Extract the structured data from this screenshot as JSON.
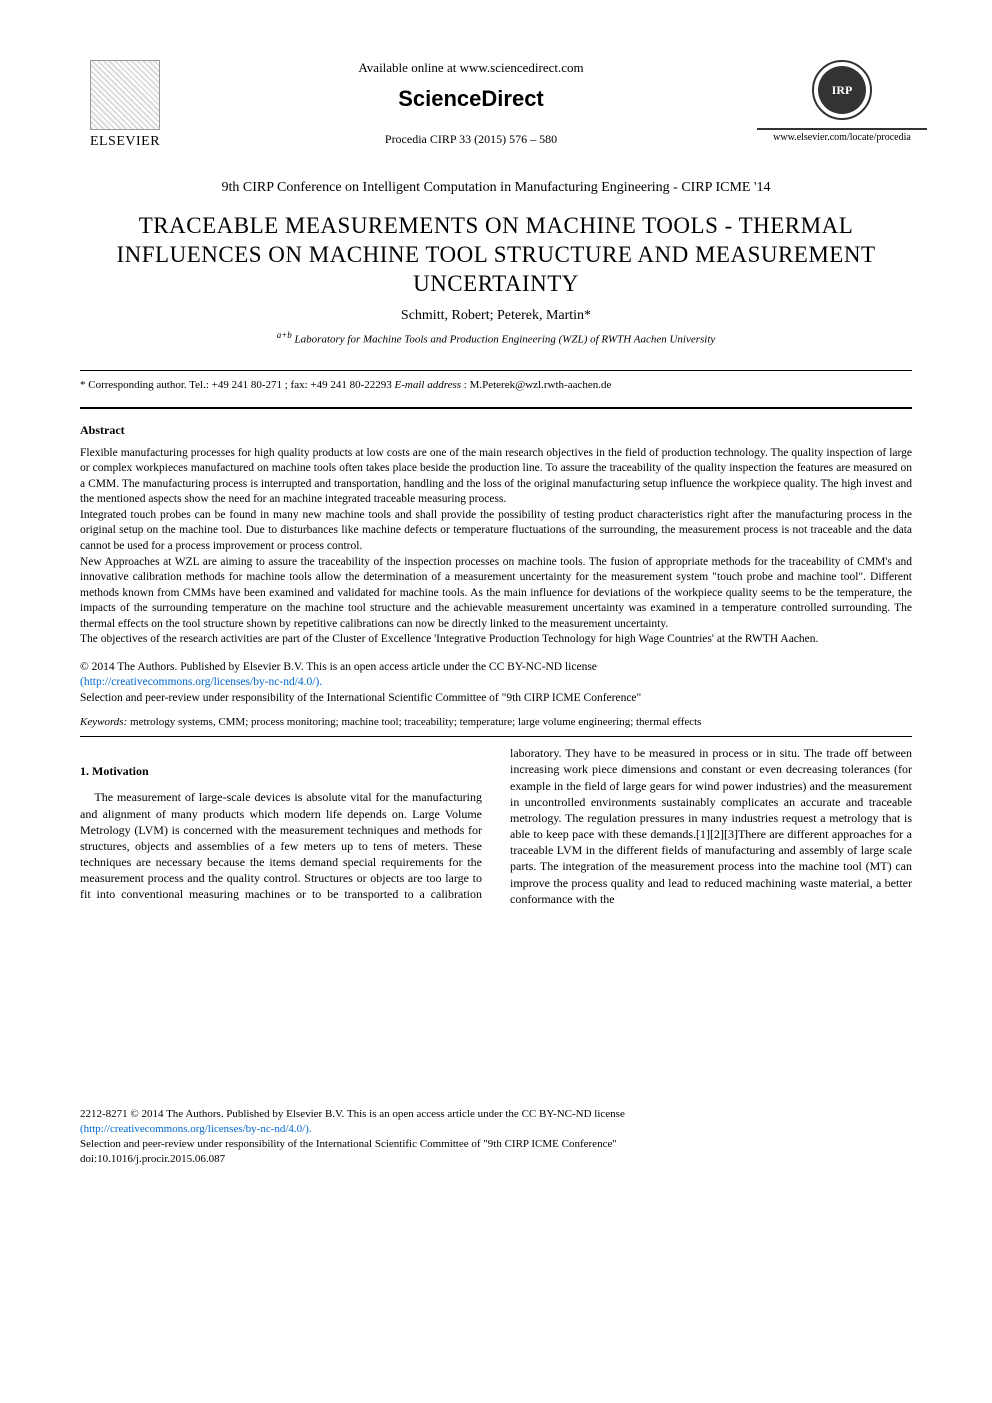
{
  "header": {
    "elsevier_label": "ELSEVIER",
    "available_online": "Available online at www.sciencedirect.com",
    "sciencedirect": "ScienceDirect",
    "procedia_citation": "Procedia CIRP 33 (2015) 576 – 580",
    "cirp_logo_text": "IRP",
    "procedia_url": "www.elsevier.com/locate/procedia"
  },
  "conference": "9th CIRP Conference on Intelligent Computation in Manufacturing Engineering - CIRP ICME '14",
  "title": "TRACEABLE MEASUREMENTS ON MACHINE TOOLS - THERMAL INFLUENCES ON MACHINE TOOL STRUCTURE AND MEASUREMENT UNCERTAINTY",
  "authors": "Schmitt, Robert; Peterek, Martin*",
  "affiliation_sup": "a+b",
  "affiliation": "Laboratory for Machine Tools and Production Engineering (WZL) of RWTH Aachen University",
  "corresponding_prefix": "* Corresponding author. Tel.: +49 241 80-271 ; fax: +49 241 80-22293  ",
  "corresponding_email_label": "E-mail address",
  "corresponding_email": ": M.Peterek@wzl.rwth-aachen.de",
  "abstract_heading": "Abstract",
  "abstract": {
    "p1": "Flexible manufacturing processes for high quality products at low costs are one of the main research objectives in the field of production technology. The quality inspection of large or complex workpieces manufactured on machine tools often takes place beside the production line. To assure the traceability of the quality inspection the features are measured on a CMM. The manufacturing process is interrupted and transportation, handling and the loss of the original manufacturing setup influence the workpiece quality. The high invest and the mentioned aspects show the need for an machine integrated traceable measuring process.",
    "p2": "Integrated touch probes can be found in many new machine tools and shall provide the possibility of testing product characteristics right after the manufacturing process in the original setup on the machine tool. Due to disturbances like machine defects or temperature fluctuations of the surrounding, the measurement process is not traceable and the data cannot be used for a process improvement or process control.",
    "p3": "New Approaches at WZL are aiming to assure the traceability of the inspection processes on machine tools. The fusion of appropriate methods for the traceability of CMM's and innovative calibration methods for machine tools allow the determination of a measurement uncertainty for the measurement system \"touch probe and machine tool\". Different methods known from CMMs have been examined and validated for machine tools. As the main influence for deviations of the workpiece quality seems to be the temperature, the impacts of the surrounding temperature on the machine tool structure and the achievable measurement uncertainty was examined in a temperature controlled surrounding. The thermal effects on the tool structure shown by repetitive calibrations can now be directly linked to the measurement uncertainty.",
    "p4": "The objectives of the research activities are part of the Cluster of Excellence 'Integrative Production Technology for high Wage Countries' at the RWTH Aachen."
  },
  "license": {
    "line1": "© 2014 The Authors. Published by Elsevier B.V. This is an open access article under the CC BY-NC-ND license",
    "link": "(http://creativecommons.org/licenses/by-nc-nd/4.0/).",
    "line2": "Selection and peer-review under responsibility of the International Scientific Committee of \"9th CIRP ICME Conference\""
  },
  "keywords_label": "Keywords:",
  "keywords": " metrology systems, CMM; process monitoring;  machine tool; traceability; temperature; large volume engineering; thermal effects",
  "section1_heading": "1. Motivation",
  "motivation_text": "The measurement of large-scale devices is absolute vital for the manufacturing and alignment of many products which modern life depends on.  Large Volume Metrology (LVM) is concerned with the measurement techniques and methods for structures, objects and assemblies of a few meters up to tens of meters. These techniques are necessary because the items demand special requirements for the measurement process and the quality control. Structures or objects are too large to fit into conventional measuring machines or to be transported to a calibration laboratory. They have to be measured in process or in situ. The trade off between increasing work piece dimensions and constant or even decreasing tolerances (for example in the field of large gears for wind power industries) and the measurement in uncontrolled environments sustainably complicates an accurate and traceable metrology. The regulation pressures in many industries request a metrology that is able to keep pace with these demands.[1][2][3]There are different approaches for a traceable LVM in the different fields of manufacturing and assembly of large scale parts. The integration of the measurement process into the machine tool (MT) can improve the process quality and lead to reduced machining waste material, a better conformance with the",
  "footer": {
    "issn_line": "2212-8271 © 2014 The Authors. Published by Elsevier B.V. This is an open access article under the CC BY-NC-ND license",
    "link": "(http://creativecommons.org/licenses/by-nc-nd/4.0/).",
    "peer_review": "Selection and peer-review under responsibility of the International Scientific Committee of \"9th CIRP ICME Conference\"",
    "doi": "doi:10.1016/j.procir.2015.06.087"
  }
}
